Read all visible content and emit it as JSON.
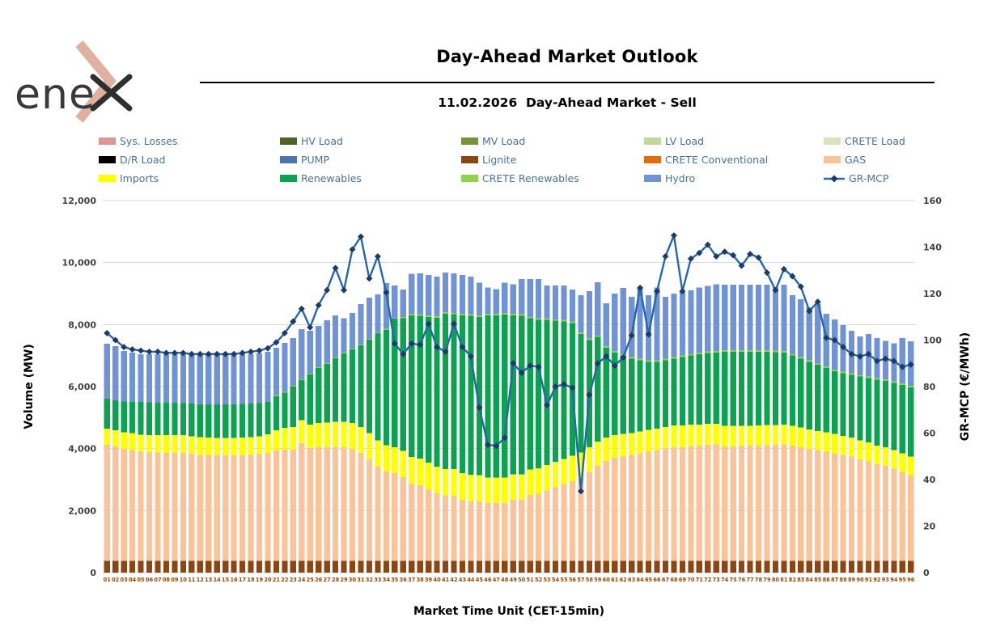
{
  "logo": {
    "text": "ene",
    "text_color": "#3a3a3a",
    "chevron_color": "#dfb19e",
    "x_color": "#2f2f2f"
  },
  "header": {
    "title": "Day-Ahead Market Outlook",
    "subtitle": "11.02.2026  Day-Ahead Market - Sell"
  },
  "legend": {
    "text_color": "#4a7391",
    "items": [
      {
        "label": "Sys. Losses",
        "color": "#d99795",
        "kind": "box"
      },
      {
        "label": "HV Load",
        "color": "#4f6228",
        "kind": "box"
      },
      {
        "label": "MV Load",
        "color": "#77933c",
        "kind": "box"
      },
      {
        "label": "LV Load",
        "color": "#c3d69b",
        "kind": "box"
      },
      {
        "label": "CRETE Load",
        "color": "#d7e4bc",
        "kind": "box"
      },
      {
        "label": "D/R Load",
        "color": "#000000",
        "kind": "box"
      },
      {
        "label": "PUMP",
        "color": "#4a76ad",
        "kind": "box"
      },
      {
        "label": "Lignite",
        "color": "#8c4613",
        "kind": "box"
      },
      {
        "label": "CRETE Conventional",
        "color": "#e36c0a",
        "kind": "box"
      },
      {
        "label": "GAS",
        "color": "#fac399",
        "kind": "box"
      },
      {
        "label": "Imports",
        "color": "#ffff00",
        "kind": "box"
      },
      {
        "label": "Renewables",
        "color": "#0da24f",
        "kind": "box"
      },
      {
        "label": "CRETE Renewables",
        "color": "#92d050",
        "kind": "box"
      },
      {
        "label": "Hydro",
        "color": "#7093d5",
        "kind": "box"
      },
      {
        "label": "GR-MCP",
        "color": "#2467ae",
        "marker_color": "#1f3a63",
        "kind": "line"
      }
    ]
  },
  "chart_data": {
    "type": "stacked-bar+line",
    "title": "Day-Ahead Market Outlook",
    "xlabel": "Market Time Unit (CET-15min)",
    "grid": true,
    "gridline_color": "#d9d9d9",
    "y_left": {
      "label": "Volume (MW)",
      "min": 0,
      "max": 12000,
      "step": 2000
    },
    "y_right": {
      "label": "GR-MCP (€/MWh)",
      "min": 0,
      "max": 160,
      "step": 20
    },
    "categories": [
      "01",
      "02",
      "03",
      "04",
      "05",
      "06",
      "07",
      "08",
      "09",
      "10",
      "11",
      "12",
      "13",
      "14",
      "15",
      "16",
      "17",
      "18",
      "19",
      "20",
      "21",
      "22",
      "23",
      "24",
      "25",
      "26",
      "27",
      "28",
      "29",
      "30",
      "31",
      "32",
      "33",
      "34",
      "35",
      "36",
      "37",
      "38",
      "39",
      "40",
      "41",
      "42",
      "43",
      "44",
      "45",
      "46",
      "47",
      "48",
      "49",
      "50",
      "51",
      "52",
      "53",
      "54",
      "55",
      "56",
      "57",
      "58",
      "59",
      "60",
      "61",
      "62",
      "63",
      "64",
      "65",
      "66",
      "67",
      "68",
      "69",
      "70",
      "71",
      "72",
      "73",
      "74",
      "75",
      "76",
      "77",
      "78",
      "79",
      "80",
      "81",
      "82",
      "83",
      "84",
      "85",
      "86",
      "87",
      "88",
      "89",
      "90",
      "91",
      "92",
      "93",
      "94",
      "95",
      "96"
    ],
    "series": [
      {
        "name": "Lignite",
        "color": "#8c4613",
        "values": [
          380,
          380,
          380,
          380,
          380,
          380,
          380,
          380,
          380,
          380,
          380,
          380,
          380,
          380,
          380,
          380,
          380,
          380,
          380,
          380,
          380,
          380,
          380,
          380,
          380,
          380,
          380,
          380,
          380,
          380,
          380,
          380,
          380,
          380,
          380,
          380,
          380,
          380,
          380,
          380,
          380,
          380,
          380,
          380,
          380,
          380,
          380,
          380,
          380,
          380,
          380,
          380,
          380,
          380,
          380,
          380,
          380,
          380,
          380,
          380,
          380,
          380,
          380,
          380,
          380,
          380,
          380,
          380,
          380,
          380,
          380,
          380,
          380,
          380,
          380,
          380,
          380,
          380,
          380,
          380,
          380,
          380,
          380,
          380,
          380,
          380,
          380,
          380,
          380,
          380,
          380,
          380,
          380,
          380,
          380,
          380
        ]
      },
      {
        "name": "GAS",
        "color": "#fac399",
        "values": [
          3740,
          3690,
          3610,
          3570,
          3520,
          3500,
          3490,
          3480,
          3480,
          3480,
          3450,
          3420,
          3410,
          3400,
          3400,
          3400,
          3410,
          3420,
          3440,
          3480,
          3560,
          3590,
          3590,
          3790,
          3640,
          3660,
          3660,
          3660,
          3660,
          3610,
          3480,
          3270,
          3040,
          2880,
          2830,
          2700,
          2490,
          2440,
          2310,
          2180,
          2100,
          2100,
          1970,
          1920,
          1920,
          1870,
          1870,
          1870,
          1970,
          1970,
          2120,
          2170,
          2270,
          2370,
          2470,
          2570,
          2670,
          2870,
          3070,
          3220,
          3320,
          3370,
          3420,
          3470,
          3520,
          3570,
          3620,
          3670,
          3670,
          3700,
          3720,
          3740,
          3760,
          3690,
          3690,
          3700,
          3710,
          3720,
          3730,
          3740,
          3750,
          3720,
          3670,
          3610,
          3570,
          3520,
          3470,
          3420,
          3370,
          3270,
          3220,
          3120,
          3070,
          2970,
          2870,
          2770
        ]
      },
      {
        "name": "Imports",
        "color": "#ffff00",
        "values": [
          520,
          520,
          540,
          550,
          550,
          560,
          560,
          570,
          570,
          570,
          570,
          570,
          570,
          570,
          570,
          570,
          570,
          570,
          580,
          600,
          650,
          700,
          730,
          750,
          750,
          780,
          800,
          820,
          820,
          830,
          840,
          850,
          850,
          850,
          840,
          840,
          860,
          860,
          860,
          860,
          860,
          860,
          860,
          860,
          840,
          820,
          820,
          820,
          820,
          820,
          820,
          820,
          820,
          820,
          820,
          820,
          820,
          800,
          780,
          760,
          740,
          720,
          700,
          700,
          700,
          700,
          700,
          700,
          700,
          700,
          680,
          680,
          660,
          660,
          660,
          650,
          650,
          650,
          650,
          640,
          640,
          640,
          630,
          630,
          620,
          620,
          620,
          610,
          610,
          610,
          600,
          600,
          600,
          600,
          600,
          600
        ]
      },
      {
        "name": "Renewables",
        "color": "#0da24f",
        "values": [
          970,
          970,
          990,
          1000,
          1050,
          1050,
          1050,
          1050,
          1050,
          1040,
          1050,
          1060,
          1070,
          1080,
          1080,
          1080,
          1080,
          1080,
          1070,
          1040,
          1100,
          1130,
          1300,
          1290,
          1620,
          1780,
          1890,
          2050,
          2210,
          2380,
          2630,
          3010,
          3450,
          3720,
          4140,
          4280,
          4570,
          4600,
          4700,
          4800,
          5010,
          4990,
          5090,
          5120,
          5110,
          5230,
          5230,
          5250,
          5130,
          5110,
          4880,
          4780,
          4680,
          4550,
          4430,
          4280,
          3830,
          3450,
          3370,
          2890,
          2660,
          2530,
          2400,
          2300,
          2200,
          2150,
          2150,
          2150,
          2200,
          2220,
          2270,
          2280,
          2300,
          2390,
          2390,
          2390,
          2380,
          2370,
          2360,
          2350,
          2330,
          2260,
          2220,
          2180,
          2130,
          2080,
          2030,
          2020,
          2020,
          2060,
          2080,
          2120,
          2130,
          2170,
          2200,
          2230
        ]
      },
      {
        "name": "CRETE Renewables",
        "color": "#92d050",
        "values": [
          0,
          0,
          0,
          0,
          0,
          0,
          0,
          0,
          0,
          0,
          0,
          0,
          0,
          0,
          0,
          0,
          0,
          0,
          0,
          0,
          30,
          30,
          30,
          30,
          30,
          30,
          30,
          30,
          30,
          30,
          30,
          30,
          30,
          30,
          30,
          50,
          50,
          50,
          50,
          50,
          50,
          50,
          50,
          50,
          50,
          50,
          50,
          50,
          50,
          50,
          50,
          50,
          50,
          50,
          50,
          50,
          50,
          50,
          50,
          50,
          50,
          50,
          50,
          50,
          50,
          50,
          50,
          50,
          50,
          50,
          50,
          50,
          50,
          50,
          50,
          50,
          50,
          50,
          50,
          50,
          50,
          50,
          50,
          50,
          50,
          50,
          50,
          50,
          50,
          50,
          50,
          50,
          50,
          50,
          50,
          50
        ]
      },
      {
        "name": "Hydro",
        "color": "#7093d5",
        "values": [
          1770,
          1740,
          1630,
          1600,
          1550,
          1560,
          1570,
          1570,
          1570,
          1580,
          1600,
          1620,
          1620,
          1620,
          1620,
          1620,
          1610,
          1610,
          1610,
          1620,
          1530,
          1580,
          1540,
          1610,
          1380,
          1330,
          1380,
          1360,
          1100,
          1140,
          1300,
          1330,
          1220,
          1480,
          1040,
          880,
          1290,
          1320,
          1300,
          1280,
          1280,
          1270,
          1250,
          1220,
          1050,
          850,
          800,
          980,
          950,
          1140,
          1220,
          1270,
          1060,
          1090,
          1110,
          1030,
          1200,
          1530,
          1720,
          1390,
          1850,
          2130,
          1950,
          2300,
          2100,
          2350,
          2000,
          2050,
          2050,
          2050,
          2100,
          2120,
          2150,
          2120,
          2120,
          2120,
          2120,
          2120,
          2120,
          2050,
          2140,
          1900,
          1870,
          1710,
          1930,
          1700,
          1620,
          1500,
          1370,
          1250,
          1370,
          1290,
          1240,
          1230,
          1460,
          1430
        ]
      }
    ],
    "line_series": {
      "name": "GR-MCP",
      "axis": "right",
      "color": "#2467ae",
      "marker": "diamond",
      "marker_color": "#1f3a63",
      "values": [
        103,
        100,
        97,
        96,
        95.5,
        95,
        95,
        94.5,
        94.5,
        94.5,
        94,
        94,
        94,
        94,
        94,
        94,
        94.5,
        95,
        95.5,
        96.5,
        99,
        103,
        108,
        113.5,
        105.5,
        115,
        121.5,
        131,
        121.5,
        139,
        144.5,
        126.5,
        136,
        120.5,
        98.5,
        94,
        98.5,
        98,
        107,
        97,
        95,
        107,
        97,
        93,
        71,
        55,
        54.5,
        58,
        90,
        86,
        89,
        88.5,
        72,
        80,
        81,
        79.5,
        35,
        76.5,
        90,
        93,
        89,
        92.5,
        102,
        122.5,
        102.5,
        121,
        136,
        145,
        121,
        135,
        137.5,
        141,
        136,
        138,
        136.5,
        132,
        137,
        135.5,
        129,
        121.5,
        130.5,
        127.5,
        123,
        112.5,
        116.5,
        101,
        100,
        97,
        94,
        93,
        94,
        91,
        92,
        91,
        88.5,
        89.5
      ]
    }
  }
}
